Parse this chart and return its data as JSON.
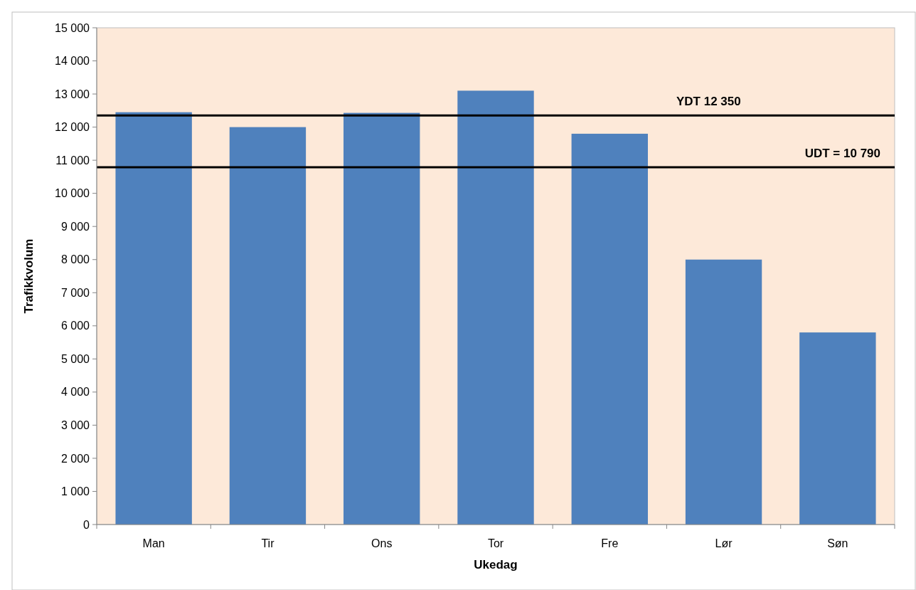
{
  "chart_data": {
    "type": "bar",
    "xlabel": "Ukedag",
    "ylabel": "Trafikkvolum",
    "categories": [
      "Man",
      "Tir",
      "Ons",
      "Tor",
      "Fre",
      "Lør",
      "Søn"
    ],
    "values": [
      12450,
      12000,
      12430,
      13100,
      11800,
      8000,
      5800
    ],
    "color": "#4f81bd",
    "ylim": [
      0,
      15000
    ],
    "yticks": [
      0,
      {
        "value": 1000,
        "label": "1 000"
      },
      {
        "value": 2000,
        "label": "2 000"
      },
      {
        "value": 3000,
        "label": "3 000"
      },
      {
        "value": 4000,
        "label": "4 000"
      },
      {
        "value": 5000,
        "label": "5 000"
      },
      {
        "value": 6000,
        "label": "6 000"
      },
      {
        "value": 7000,
        "label": "7 000"
      },
      {
        "value": 8000,
        "label": "8 000"
      },
      {
        "value": 9000,
        "label": "9 000"
      },
      {
        "value": 10000,
        "label": "10 000"
      },
      {
        "value": 11000,
        "label": "11 000"
      },
      {
        "value": 12000,
        "label": "12 000"
      },
      {
        "value": 13000,
        "label": "13 000"
      },
      {
        "value": 14000,
        "label": "14 000"
      },
      {
        "value": 15000,
        "label": "15 000"
      }
    ],
    "grid": false,
    "ref_lines": [
      {
        "axis": "y",
        "value": 12350,
        "label": "YDT 12 350",
        "color": "#000000"
      },
      {
        "axis": "y",
        "value": 10790,
        "label": "UDT = 10 790",
        "color": "#000000"
      }
    ]
  }
}
